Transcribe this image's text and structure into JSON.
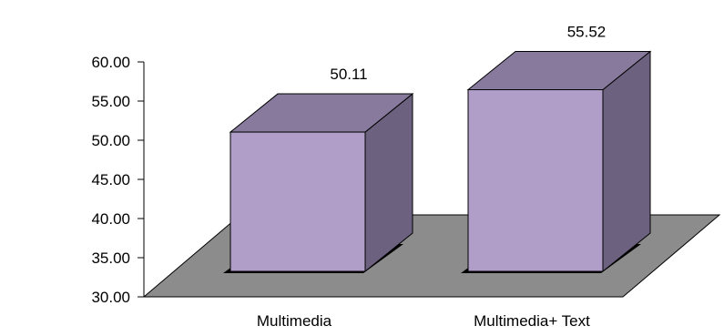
{
  "chart_data": {
    "type": "bar",
    "title": "",
    "xlabel": "",
    "ylabel": "",
    "categories": [
      "Multimedia",
      "Multimedia+ Text"
    ],
    "values": [
      50.11,
      55.52
    ],
    "value_labels": [
      "50.11",
      "55.52"
    ],
    "ylim": [
      30,
      60
    ],
    "yticks": [
      30,
      35,
      40,
      45,
      50,
      55,
      60
    ],
    "ytick_labels": [
      "30.00",
      "35.00",
      "40.00",
      "45.00",
      "50.00",
      "55.00",
      "60.00"
    ],
    "grid": false,
    "legend": "none",
    "colors": {
      "bar_front": "#B09EC8",
      "bar_top": "#887A9C",
      "bar_side": "#6C6280",
      "floor": "#8C8C8C",
      "bar_shadow": "#000000"
    }
  }
}
